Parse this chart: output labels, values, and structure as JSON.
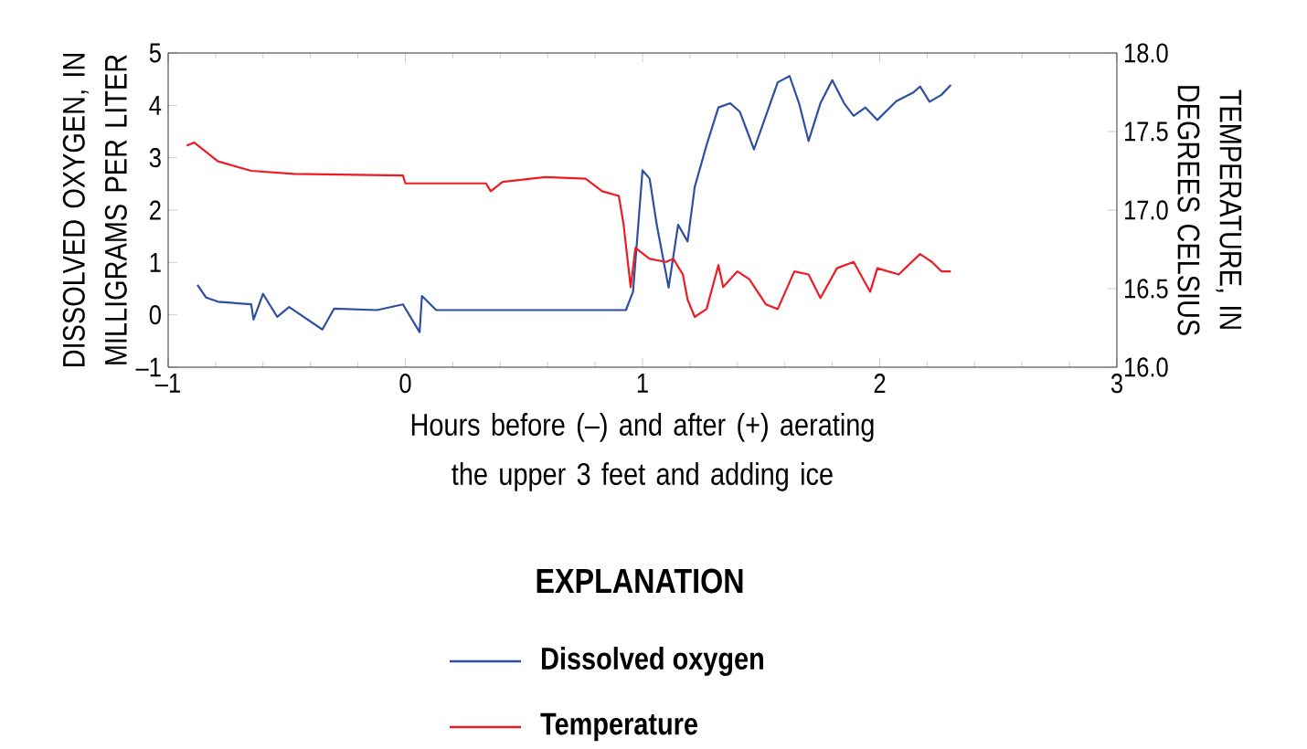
{
  "chart_data": {
    "type": "line",
    "xlabel": "Hours before (–) and after (+) aerating the upper 3 feet and adding ice",
    "ylabel": "DISSOLVED OXYGEN, IN MILLIGRAMS PER LITER",
    "y2label": "TEMPERATURE, IN DEGREES CELSIUS",
    "legend_title": "EXPLANATION",
    "legend": "bottom",
    "grid": false,
    "xlim": [
      -1,
      3
    ],
    "xticks": [
      {
        "value": -1,
        "label": "–1"
      },
      0,
      1,
      2,
      3
    ],
    "ylim": [
      -1,
      5
    ],
    "yticks": [
      {
        "value": -1,
        "label": "–1"
      },
      0,
      1,
      2,
      3,
      4,
      5
    ],
    "y2lim": [
      16,
      18
    ],
    "y2ticks": [
      {
        "value": 16,
        "label": "16.0"
      },
      16.5,
      {
        "value": 17,
        "label": "17.0"
      },
      17.5,
      {
        "value": 18,
        "label": "18.0"
      }
    ],
    "series": [
      {
        "name": "Dissolved oxygen",
        "color": "#2e4fa0",
        "x": [
          -0.877,
          -0.84,
          -0.79,
          -0.65,
          -0.64,
          -0.6,
          -0.54,
          -0.49,
          -0.35,
          -0.3,
          -0.12,
          -0.01,
          0.06,
          0.07,
          0.13,
          0.41,
          0.76,
          0.93,
          0.96,
          1.0,
          1.03,
          1.06,
          1.11,
          1.15,
          1.19,
          1.22,
          1.27,
          1.32,
          1.37,
          1.41,
          1.47,
          1.52,
          1.57,
          1.62,
          1.66,
          1.7,
          1.75,
          1.8,
          1.85,
          1.89,
          1.94,
          1.99,
          2.07,
          2.14,
          2.17,
          2.21,
          2.26,
          2.3
        ],
        "values": [
          0.57,
          0.33,
          0.25,
          0.2,
          -0.09,
          0.4,
          -0.04,
          0.15,
          -0.28,
          0.12,
          0.09,
          0.2,
          -0.33,
          0.36,
          0.09,
          0.09,
          0.09,
          0.09,
          0.44,
          2.76,
          2.6,
          1.72,
          0.52,
          1.72,
          1.4,
          2.44,
          3.24,
          3.96,
          4.04,
          3.88,
          3.16,
          3.8,
          4.44,
          4.56,
          4.04,
          3.32,
          4.04,
          4.48,
          4.04,
          3.8,
          3.96,
          3.72,
          4.08,
          4.24,
          4.36,
          4.07,
          4.2,
          4.39
        ]
      },
      {
        "name": "Temperature",
        "color": "#ed1c24",
        "axis": "y2",
        "x": [
          -0.922,
          -0.89,
          -0.79,
          -0.65,
          -0.47,
          -0.01,
          0.0,
          0.34,
          0.36,
          0.41,
          0.59,
          0.76,
          0.83,
          0.9,
          0.92,
          0.95,
          0.97,
          1.03,
          1.1,
          1.13,
          1.17,
          1.19,
          1.22,
          1.27,
          1.32,
          1.34,
          1.4,
          1.45,
          1.52,
          1.57,
          1.64,
          1.7,
          1.75,
          1.82,
          1.89,
          1.96,
          1.99,
          2.08,
          2.17,
          2.22,
          2.26,
          2.3
        ],
        "values": [
          17.41,
          17.43,
          17.31,
          17.25,
          17.23,
          17.22,
          17.17,
          17.17,
          17.12,
          17.18,
          17.21,
          17.2,
          17.12,
          17.09,
          16.91,
          16.51,
          16.76,
          16.69,
          16.67,
          16.69,
          16.59,
          16.43,
          16.32,
          16.37,
          16.65,
          16.51,
          16.61,
          16.56,
          16.4,
          16.37,
          16.61,
          16.59,
          16.44,
          16.63,
          16.67,
          16.48,
          16.63,
          16.59,
          16.72,
          16.67,
          16.61,
          16.61
        ]
      }
    ]
  }
}
